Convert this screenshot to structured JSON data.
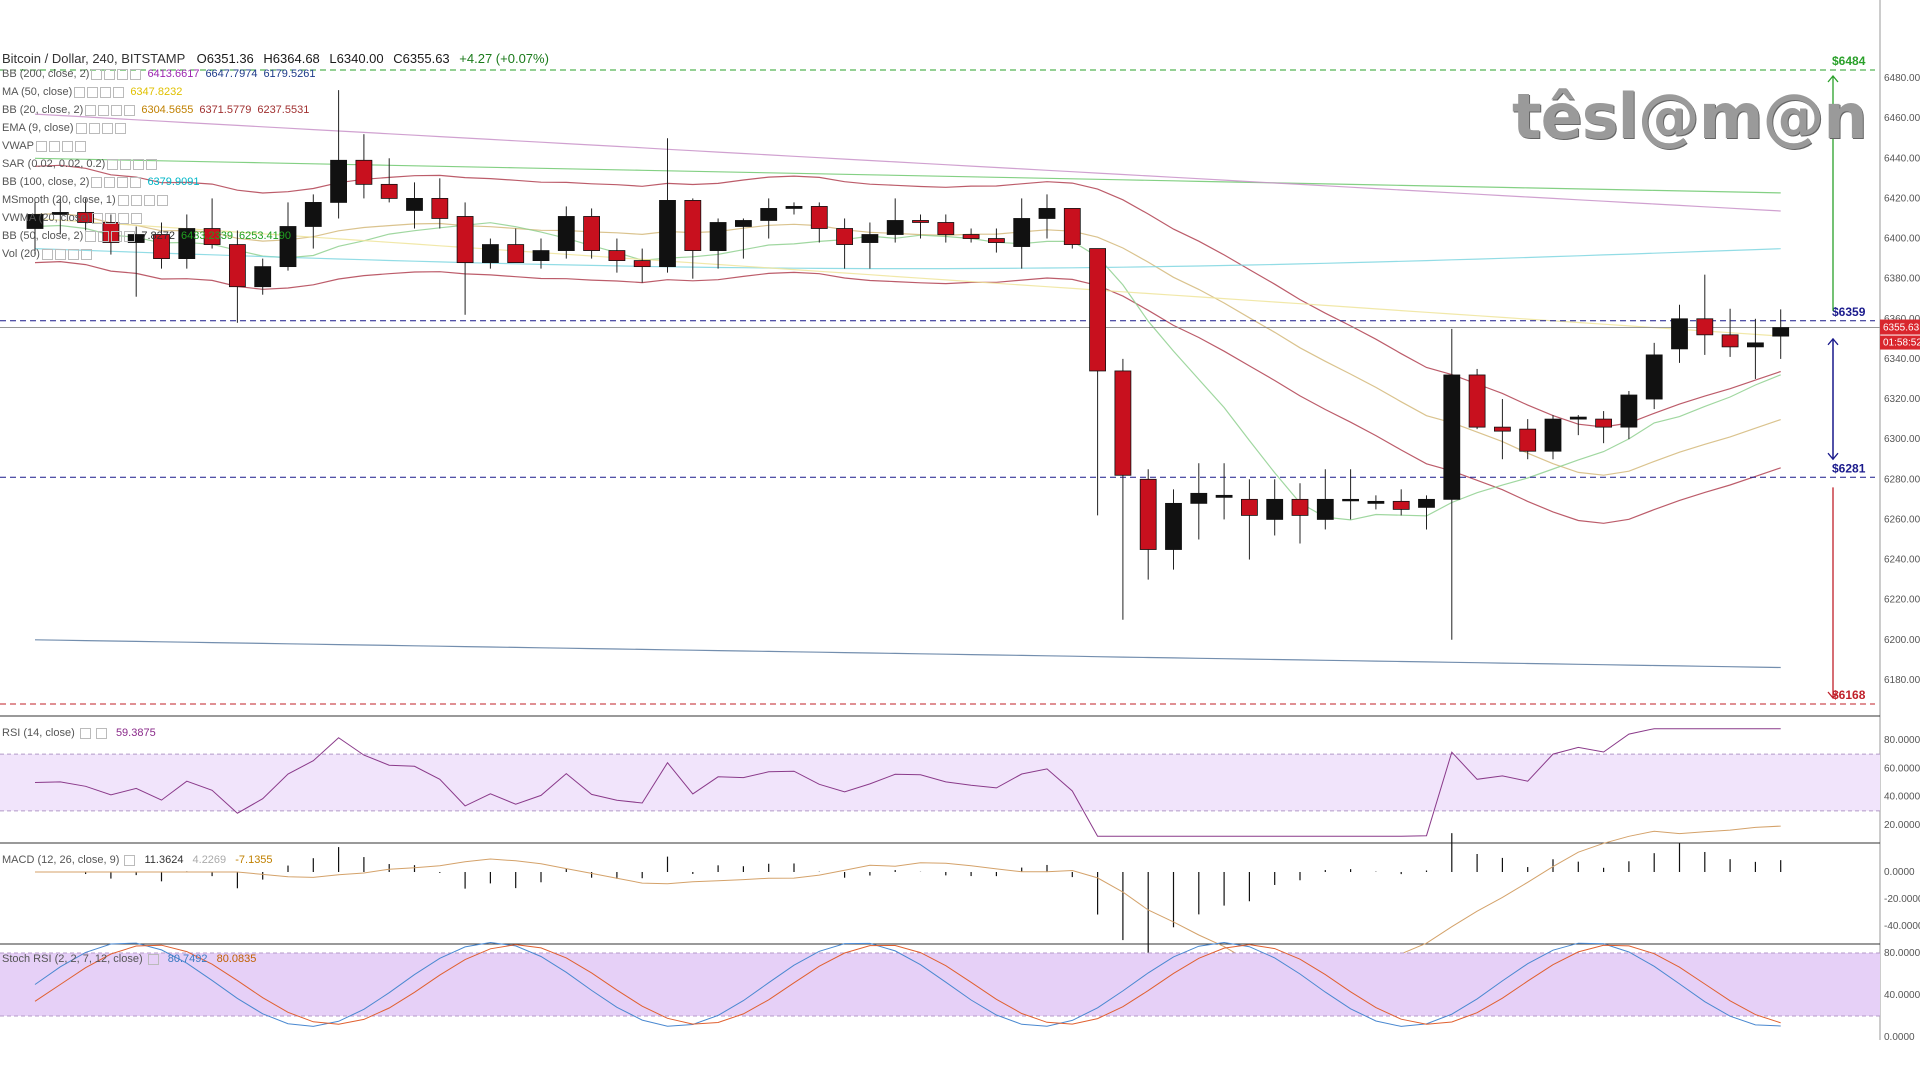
{
  "header": {
    "title": "Bitcoin / Dollar, 240, BITSTAMP",
    "open": "O6351.36",
    "high": "H6364.68",
    "low": "L6340.00",
    "close": "C6355.63",
    "change": "+4.27 (+0.07%)"
  },
  "indicators": [
    {
      "label": "BB (200, close, 2)",
      "values": [
        "6413.6617",
        "6647.7974",
        "6179.5261"
      ],
      "colors": [
        "#9c27b0",
        "#1e3a8a",
        "#1e3a8a"
      ]
    },
    {
      "label": "MA (50, close)",
      "values": [
        "6347.8232"
      ],
      "colors": [
        "#e0c000"
      ]
    },
    {
      "label": "BB (20, close, 2)",
      "values": [
        "6304.5655",
        "6371.5779",
        "6237.5531"
      ],
      "colors": [
        "#c08000",
        "#a03030",
        "#a03030"
      ]
    },
    {
      "label": "EMA (9, close)",
      "values": [],
      "colors": []
    },
    {
      "label": "VWAP",
      "values": [],
      "colors": []
    },
    {
      "label": "SAR (0.02, 0.02, 0.2)",
      "values": [],
      "colors": []
    },
    {
      "label": "BB (100, close, 2)",
      "values": [
        "6379.9091"
      ],
      "colors": [
        "#00b7c8"
      ]
    },
    {
      "label": "MSmooth (20, close, 1)",
      "values": [],
      "colors": []
    },
    {
      "label": "VWMA (20, close)",
      "values": [],
      "colors": []
    },
    {
      "label": "BB (50, close, 2)",
      "values": [
        "7.8272",
        "6433.2339",
        "6253.4190"
      ],
      "colors": [
        "#333333",
        "#20a020",
        "#20a020"
      ]
    },
    {
      "label": "Vol (20)",
      "values": [],
      "colors": []
    }
  ],
  "logo_text": "têsl@m@n",
  "price_tags": {
    "current": "6355.63",
    "countdown": "01:58:52"
  },
  "levels": [
    {
      "label": "$6484",
      "value": 6484,
      "color": "#2aa02a"
    },
    {
      "label": "$6359",
      "value": 6359,
      "color": "#1a1a8c"
    },
    {
      "label": "$6281",
      "value": 6281,
      "color": "#1a1a8c"
    },
    {
      "label": "$6168",
      "value": 6168,
      "color": "#c0202a"
    }
  ],
  "rsi": {
    "label": "RSI (14, close)",
    "value": "59.3875",
    "ticks": [
      "80.0000",
      "60.0000",
      "40.0000",
      "20.0000"
    ]
  },
  "macd": {
    "label": "MACD (12, 26, close, 9)",
    "values": [
      "11.3624",
      "4.2269",
      "-7.1355"
    ],
    "ticks": [
      "0.0000",
      "-20.0000",
      "-40.0000"
    ]
  },
  "stoch": {
    "label": "Stoch RSI (2, 2, 7, 12, close)",
    "values": [
      "80.7492",
      "80.0835"
    ],
    "ticks": [
      "80.0000",
      "40.0000",
      "0.0000"
    ]
  },
  "chart_data": {
    "type": "candlestick",
    "title": "Bitcoin / Dollar, 240, BITSTAMP",
    "ylim": [
      6168,
      6484
    ],
    "yticks": [
      6480,
      6460,
      6440,
      6420,
      6400,
      6380,
      6360,
      6340,
      6320,
      6300,
      6280,
      6260,
      6240,
      6220,
      6200,
      6180
    ],
    "candles": [
      {
        "o": 6405,
        "h": 6418,
        "l": 6392,
        "c": 6412
      },
      {
        "o": 6412,
        "h": 6420,
        "l": 6402,
        "c": 6413
      },
      {
        "o": 6413,
        "h": 6420,
        "l": 6404,
        "c": 6408
      },
      {
        "o": 6408,
        "h": 6412,
        "l": 6392,
        "c": 6398
      },
      {
        "o": 6398,
        "h": 6406,
        "l": 6371,
        "c": 6402
      },
      {
        "o": 6402,
        "h": 6408,
        "l": 6385,
        "c": 6390
      },
      {
        "o": 6390,
        "h": 6412,
        "l": 6385,
        "c": 6405
      },
      {
        "o": 6405,
        "h": 6420,
        "l": 6395,
        "c": 6397
      },
      {
        "o": 6397,
        "h": 6404,
        "l": 6358,
        "c": 6376
      },
      {
        "o": 6376,
        "h": 6390,
        "l": 6372,
        "c": 6386
      },
      {
        "o": 6386,
        "h": 6418,
        "l": 6384,
        "c": 6406
      },
      {
        "o": 6406,
        "h": 6422,
        "l": 6395,
        "c": 6418
      },
      {
        "o": 6418,
        "h": 6474,
        "l": 6410,
        "c": 6439
      },
      {
        "o": 6439,
        "h": 6452,
        "l": 6420,
        "c": 6427
      },
      {
        "o": 6427,
        "h": 6440,
        "l": 6418,
        "c": 6420
      },
      {
        "o": 6414,
        "h": 6428,
        "l": 6405,
        "c": 6420
      },
      {
        "o": 6420,
        "h": 6430,
        "l": 6405,
        "c": 6410
      },
      {
        "o": 6411,
        "h": 6418,
        "l": 6362,
        "c": 6388
      },
      {
        "o": 6388,
        "h": 6400,
        "l": 6385,
        "c": 6397
      },
      {
        "o": 6397,
        "h": 6405,
        "l": 6389,
        "c": 6388
      },
      {
        "o": 6389,
        "h": 6400,
        "l": 6385,
        "c": 6394
      },
      {
        "o": 6394,
        "h": 6416,
        "l": 6390,
        "c": 6411
      },
      {
        "o": 6411,
        "h": 6415,
        "l": 6390,
        "c": 6394
      },
      {
        "o": 6394,
        "h": 6400,
        "l": 6383,
        "c": 6389
      },
      {
        "o": 6389,
        "h": 6395,
        "l": 6378,
        "c": 6386
      },
      {
        "o": 6386,
        "h": 6450,
        "l": 6383,
        "c": 6419
      },
      {
        "o": 6419,
        "h": 6420,
        "l": 6380,
        "c": 6394
      },
      {
        "o": 6394,
        "h": 6410,
        "l": 6385,
        "c": 6408
      },
      {
        "o": 6406,
        "h": 6410,
        "l": 6390,
        "c": 6409
      },
      {
        "o": 6409,
        "h": 6420,
        "l": 6400,
        "c": 6415
      },
      {
        "o": 6415,
        "h": 6418,
        "l": 6412,
        "c": 6416
      },
      {
        "o": 6416,
        "h": 6418,
        "l": 6398,
        "c": 6405
      },
      {
        "o": 6405,
        "h": 6410,
        "l": 6385,
        "c": 6397
      },
      {
        "o": 6398,
        "h": 6408,
        "l": 6385,
        "c": 6402
      },
      {
        "o": 6402,
        "h": 6420,
        "l": 6398,
        "c": 6409
      },
      {
        "o": 6409,
        "h": 6412,
        "l": 6400,
        "c": 6408
      },
      {
        "o": 6408,
        "h": 6412,
        "l": 6398,
        "c": 6402
      },
      {
        "o": 6402,
        "h": 6405,
        "l": 6398,
        "c": 6400
      },
      {
        "o": 6400,
        "h": 6405,
        "l": 6393,
        "c": 6398
      },
      {
        "o": 6396,
        "h": 6420,
        "l": 6385,
        "c": 6410
      },
      {
        "o": 6410,
        "h": 6422,
        "l": 6400,
        "c": 6415
      },
      {
        "o": 6415,
        "h": 6414,
        "l": 6395,
        "c": 6397
      },
      {
        "o": 6395,
        "h": 6395,
        "l": 6262,
        "c": 6334
      },
      {
        "o": 6334,
        "h": 6340,
        "l": 6210,
        "c": 6282
      },
      {
        "o": 6280,
        "h": 6285,
        "l": 6230,
        "c": 6245
      },
      {
        "o": 6245,
        "h": 6275,
        "l": 6235,
        "c": 6268
      },
      {
        "o": 6268,
        "h": 6288,
        "l": 6250,
        "c": 6273
      },
      {
        "o": 6271,
        "h": 6288,
        "l": 6260,
        "c": 6272
      },
      {
        "o": 6270,
        "h": 6280,
        "l": 6240,
        "c": 6262
      },
      {
        "o": 6260,
        "h": 6280,
        "l": 6252,
        "c": 6270
      },
      {
        "o": 6270,
        "h": 6278,
        "l": 6248,
        "c": 6262
      },
      {
        "o": 6260,
        "h": 6285,
        "l": 6255,
        "c": 6270
      },
      {
        "o": 6270,
        "h": 6285,
        "l": 6260,
        "c": 6270
      },
      {
        "o": 6268,
        "h": 6272,
        "l": 6265,
        "c": 6269
      },
      {
        "o": 6269,
        "h": 6275,
        "l": 6262,
        "c": 6265
      },
      {
        "o": 6266,
        "h": 6272,
        "l": 6255,
        "c": 6270
      },
      {
        "o": 6270,
        "h": 6355,
        "l": 6200,
        "c": 6332
      },
      {
        "o": 6332,
        "h": 6335,
        "l": 6305,
        "c": 6306
      },
      {
        "o": 6306,
        "h": 6320,
        "l": 6290,
        "c": 6304
      },
      {
        "o": 6305,
        "h": 6310,
        "l": 6290,
        "c": 6294
      },
      {
        "o": 6294,
        "h": 6312,
        "l": 6290,
        "c": 6310
      },
      {
        "o": 6310,
        "h": 6312,
        "l": 6302,
        "c": 6311
      },
      {
        "o": 6310,
        "h": 6314,
        "l": 6298,
        "c": 6306
      },
      {
        "o": 6306,
        "h": 6324,
        "l": 6300,
        "c": 6322
      },
      {
        "o": 6320,
        "h": 6348,
        "l": 6315,
        "c": 6342
      },
      {
        "o": 6345,
        "h": 6367,
        "l": 6338,
        "c": 6360
      },
      {
        "o": 6360,
        "h": 6382,
        "l": 6342,
        "c": 6352
      },
      {
        "o": 6352,
        "h": 6365,
        "l": 6341,
        "c": 6346
      },
      {
        "o": 6346,
        "h": 6360,
        "l": 6330,
        "c": 6348
      },
      {
        "o": 6351.36,
        "h": 6364.68,
        "l": 6340.0,
        "c": 6355.63
      }
    ]
  }
}
